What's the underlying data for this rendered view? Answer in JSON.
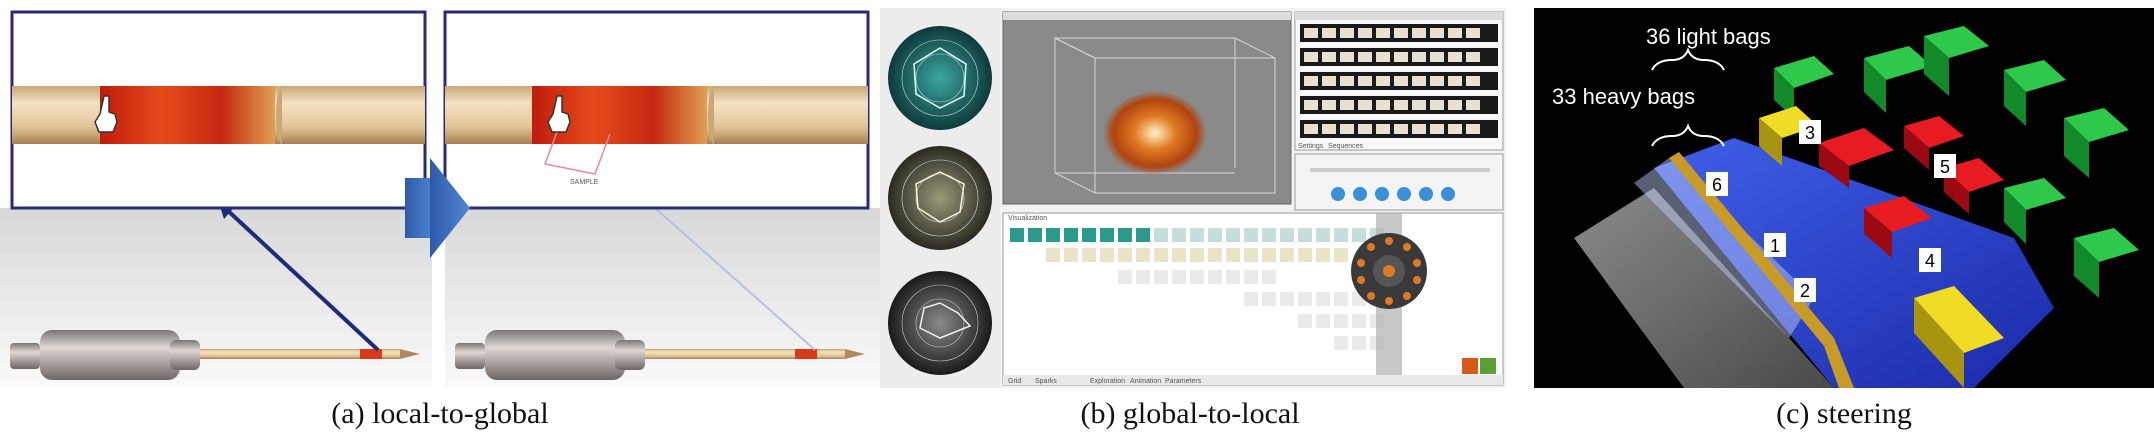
{
  "figure": {
    "panels": [
      {
        "id": "a",
        "caption": "(a)  local-to-global",
        "inset_label": "SAMPLE"
      },
      {
        "id": "b",
        "caption": "(b)  global-to-local",
        "view_title": "Visualization",
        "bottom_tabs": [
          "Grid",
          "Sparks",
          "Exploration",
          "Animation",
          "Parameters"
        ],
        "side_tabs": [
          "Settings",
          "Sequences"
        ]
      },
      {
        "id": "c",
        "caption": "(c)  steering",
        "annotations": [
          "36 light bags",
          "33 heavy bags"
        ],
        "markers": [
          "1",
          "2",
          "3",
          "4",
          "5",
          "6"
        ]
      }
    ],
    "colors": {
      "arrow_blue": "#3f6fc0",
      "tube_beige": "#e8cfa6",
      "heat_red": "#d83a1a",
      "flood_blue": "#2336c8",
      "building_green": "#1faa3a",
      "building_red": "#d6101a",
      "building_yellow": "#e8d21c"
    }
  }
}
